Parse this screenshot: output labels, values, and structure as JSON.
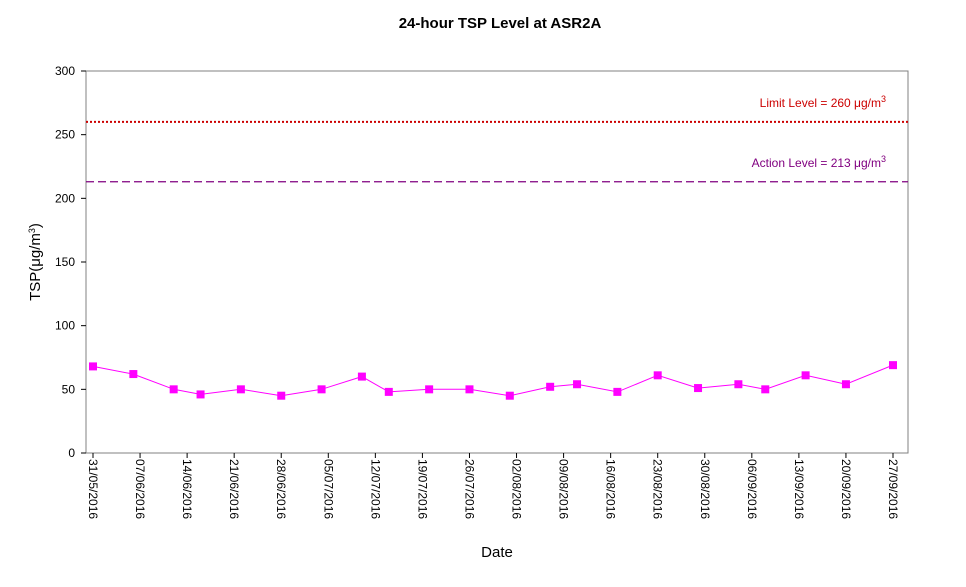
{
  "chart_data": {
    "type": "line",
    "title": "24-hour TSP Level at ASR2A",
    "xlabel": "Date",
    "ylabel": "TSP(μg/m3)",
    "ylim": [
      0,
      300
    ],
    "yticks": [
      0,
      50,
      100,
      150,
      200,
      250,
      300
    ],
    "xlim": [
      "31/05/2016",
      "27/09/2016"
    ],
    "xticks": [
      "31/05/2016",
      "07/06/2016",
      "14/06/2016",
      "21/06/2016",
      "28/06/2016",
      "05/07/2016",
      "12/07/2016",
      "19/07/2016",
      "26/07/2016",
      "02/08/2016",
      "09/08/2016",
      "16/08/2016",
      "23/08/2016",
      "30/08/2016",
      "06/09/2016",
      "13/09/2016",
      "20/09/2016",
      "27/09/2016"
    ],
    "grid": false,
    "series": [
      {
        "marker": "square",
        "color": "#ff00ff",
        "points": [
          {
            "x": "31/05/2016",
            "y": 68
          },
          {
            "x": "06/06/2016",
            "y": 62
          },
          {
            "x": "12/06/2016",
            "y": 50
          },
          {
            "x": "16/06/2016",
            "y": 46
          },
          {
            "x": "22/06/2016",
            "y": 50
          },
          {
            "x": "28/06/2016",
            "y": 45
          },
          {
            "x": "04/07/2016",
            "y": 50
          },
          {
            "x": "10/07/2016",
            "y": 60
          },
          {
            "x": "14/07/2016",
            "y": 48
          },
          {
            "x": "20/07/2016",
            "y": 50
          },
          {
            "x": "26/07/2016",
            "y": 50
          },
          {
            "x": "01/08/2016",
            "y": 45
          },
          {
            "x": "07/08/2016",
            "y": 52
          },
          {
            "x": "11/08/2016",
            "y": 54
          },
          {
            "x": "17/08/2016",
            "y": 48
          },
          {
            "x": "23/08/2016",
            "y": 61
          },
          {
            "x": "29/08/2016",
            "y": 51
          },
          {
            "x": "04/09/2016",
            "y": 54
          },
          {
            "x": "08/09/2016",
            "y": 50
          },
          {
            "x": "14/09/2016",
            "y": 61
          },
          {
            "x": "20/09/2016",
            "y": 54
          },
          {
            "x": "27/09/2016",
            "y": 69
          }
        ]
      }
    ],
    "reference_lines": [
      {
        "name": "Limit Level",
        "value": 260,
        "label": "Limit Level  = 260 μg/m3",
        "color": "#cc0000",
        "style": "dotted"
      },
      {
        "name": "Action Level",
        "value": 213,
        "label": "Action Level  = 213 μg/m3",
        "color": "#800080",
        "style": "dashed"
      }
    ]
  }
}
